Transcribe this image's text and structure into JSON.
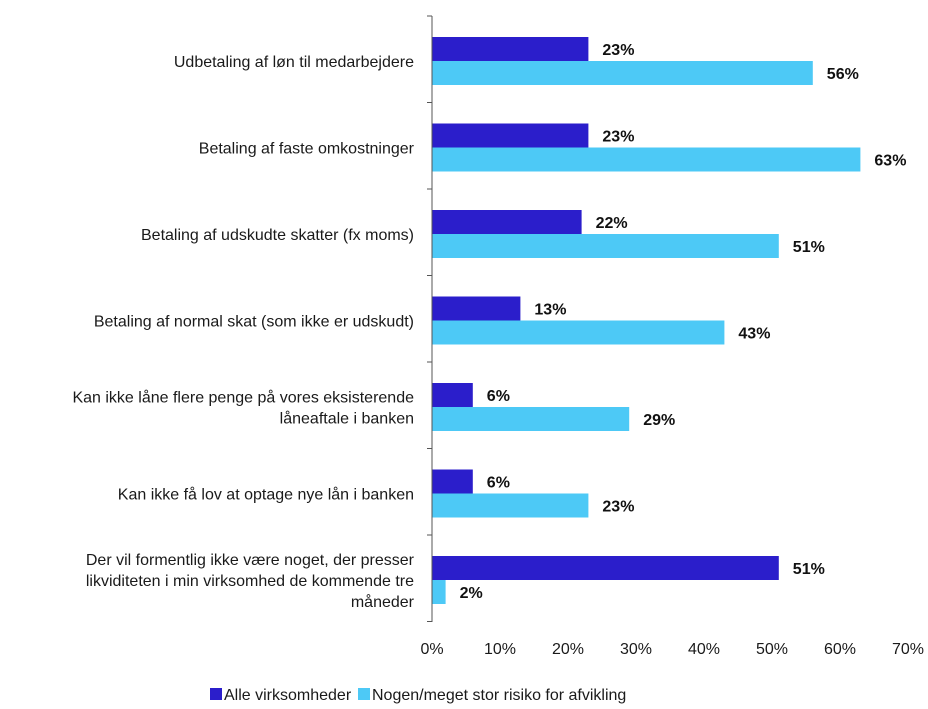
{
  "chart_data": {
    "type": "bar",
    "orientation": "horizontal",
    "categories": [
      [
        "Udbetaling af løn til medarbejdere"
      ],
      [
        "Betaling af faste omkostninger"
      ],
      [
        "Betaling af udskudte skatter (fx moms)"
      ],
      [
        "Betaling af normal skat (som ikke er udskudt)"
      ],
      [
        "Kan ikke låne flere penge på vores eksisterende",
        "låneaftale i banken"
      ],
      [
        "Kan ikke få lov at optage nye lån i banken"
      ],
      [
        "Der vil formentlig ikke være noget, der presser",
        "likviditeten i min virksomhed de kommende tre",
        "måneder"
      ]
    ],
    "series": [
      {
        "name": "Alle virksomheder",
        "color": "#2b1ecb",
        "values": [
          23,
          23,
          22,
          13,
          6,
          6,
          51
        ],
        "labels": [
          "23%",
          "23%",
          "22%",
          "13%",
          "6%",
          "6%",
          "51%"
        ]
      },
      {
        "name": "Nogen/meget stor risiko for afvikling",
        "color": "#4dc9f6",
        "values": [
          56,
          63,
          51,
          43,
          29,
          23,
          2
        ],
        "labels": [
          "56%",
          "63%",
          "51%",
          "43%",
          "29%",
          "23%",
          "2%"
        ]
      }
    ],
    "xlim": [
      0,
      70
    ],
    "xticks": [
      0,
      10,
      20,
      30,
      40,
      50,
      60,
      70
    ],
    "xtick_labels": [
      "0%",
      "10%",
      "20%",
      "30%",
      "40%",
      "50%",
      "60%",
      "70%"
    ],
    "grid": false,
    "legend_position": "bottom"
  }
}
